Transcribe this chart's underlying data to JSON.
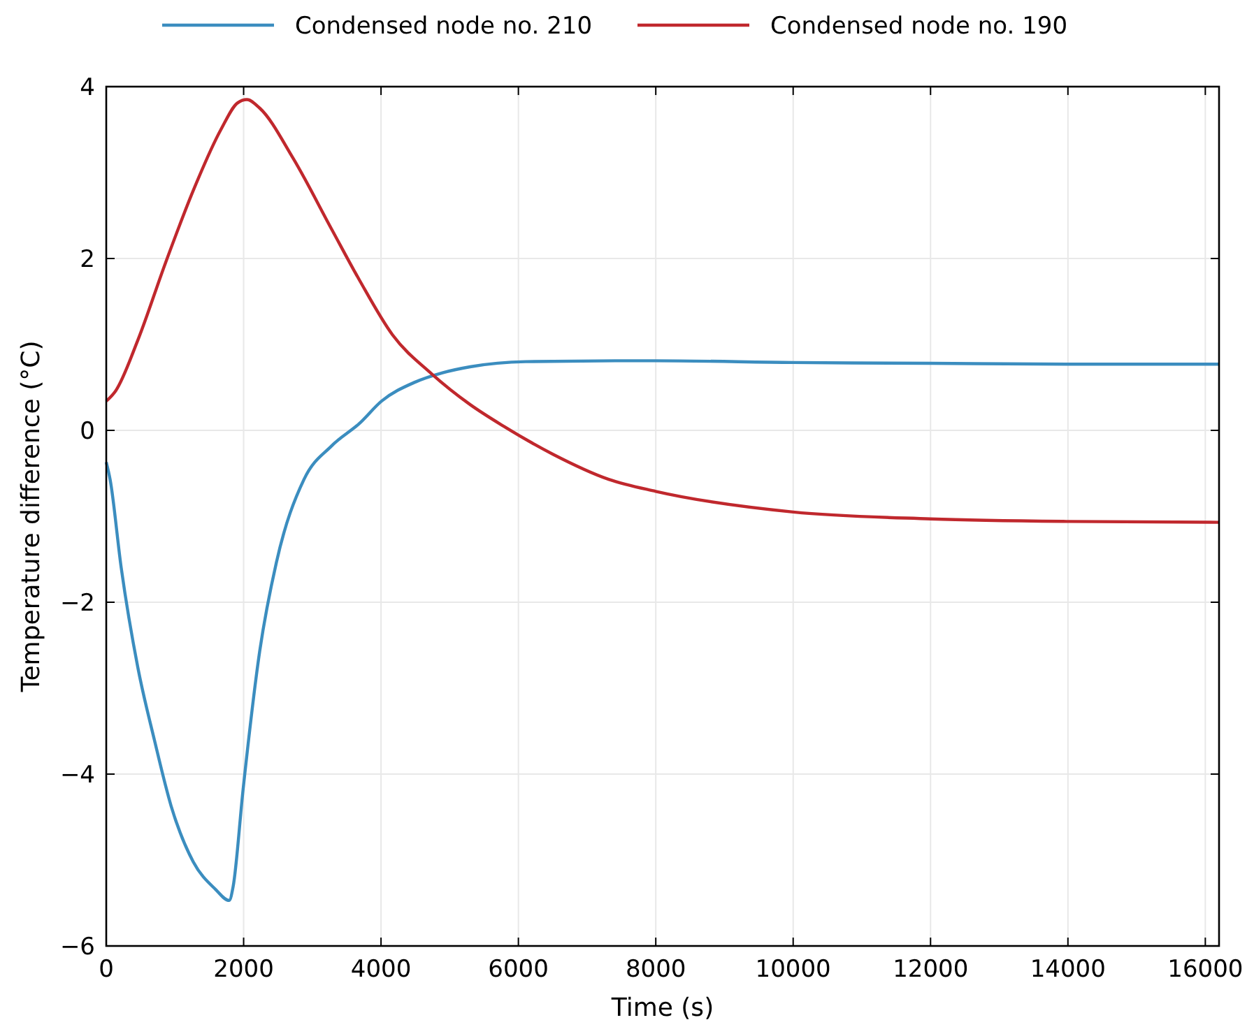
{
  "chart_data": {
    "type": "line",
    "xlabel": "Time (s)",
    "ylabel": "Temperature difference (°C)",
    "xlim": [
      0,
      16200
    ],
    "ylim": [
      -6,
      4
    ],
    "xticks": [
      0,
      2000,
      4000,
      6000,
      8000,
      10000,
      12000,
      14000,
      16000
    ],
    "yticks": [
      -6,
      -4,
      -2,
      0,
      2,
      4
    ],
    "grid": true,
    "legend": "top",
    "marker": "none",
    "line_style": "solid",
    "series": [
      {
        "name": "Condensed node no. 210",
        "color": "#3b8dbf",
        "x": [
          0,
          56,
          218,
          460,
          700,
          944,
          1266,
          1589,
          1790,
          1847,
          1992,
          2234,
          2476,
          2879,
          3282,
          3685,
          4008,
          4492,
          4895,
          5298,
          6105,
          7718,
          8000,
          10000,
          12000,
          14000,
          16200
        ],
        "values": [
          -0.37,
          -0.57,
          -1.6,
          -2.76,
          -3.6,
          -4.37,
          -5.02,
          -5.34,
          -5.47,
          -5.31,
          -4.18,
          -2.57,
          -1.54,
          -0.57,
          -0.18,
          0.08,
          0.34,
          0.56,
          0.67,
          0.74,
          0.8,
          0.81,
          0.81,
          0.79,
          0.78,
          0.77,
          0.77
        ]
      },
      {
        "name": "Condensed node no. 190",
        "color": "#c0282d",
        "x": [
          0,
          137,
          460,
          863,
          1266,
          1669,
          1911,
          2048,
          2234,
          2718,
          3282,
          3685,
          4169,
          4734,
          5298,
          5782,
          6508,
          7315,
          8000,
          10000,
          12000,
          14000,
          16200
        ],
        "values": [
          0.34,
          0.46,
          1.05,
          1.95,
          2.79,
          3.5,
          3.81,
          3.85,
          3.75,
          3.17,
          2.34,
          1.75,
          1.11,
          0.66,
          0.3,
          0.05,
          -0.28,
          -0.57,
          -0.71,
          -0.95,
          -1.03,
          -1.06,
          -1.07
        ]
      }
    ]
  }
}
